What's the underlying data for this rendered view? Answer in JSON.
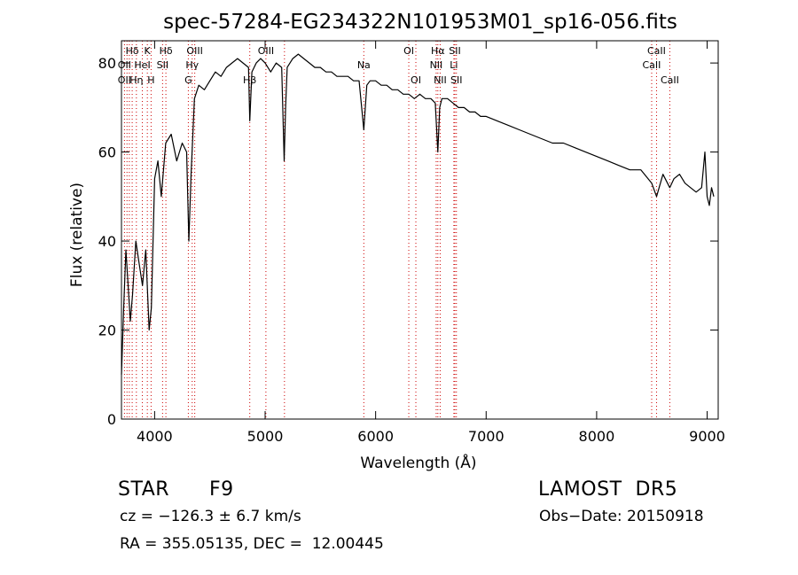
{
  "chart_data": {
    "type": "line",
    "title": "spec-57284-EG234322N101953M01_sp16-056.fits",
    "xlabel": "Wavelength (Å)",
    "ylabel": "Flux (relative)",
    "xlim": [
      3700,
      9100
    ],
    "ylim": [
      0,
      85
    ],
    "xticks": [
      4000,
      5000,
      6000,
      7000,
      8000,
      9000
    ],
    "yticks": [
      0,
      20,
      40,
      60,
      80
    ],
    "grid": false,
    "series": [
      {
        "x": [
          3700,
          3720,
          3740,
          3760,
          3780,
          3800,
          3830,
          3860,
          3890,
          3920,
          3950,
          3970,
          4000,
          4030,
          4060,
          4100,
          4150,
          4200,
          4250,
          4290,
          4310,
          4330,
          4360,
          4400,
          4450,
          4500,
          4550,
          4600,
          4650,
          4700,
          4750,
          4800,
          4850,
          4861,
          4880,
          4920,
          4960,
          5000,
          5050,
          5100,
          5150,
          5172,
          5185,
          5200,
          5250,
          5300,
          5350,
          5400,
          5450,
          5500,
          5550,
          5600,
          5650,
          5700,
          5750,
          5800,
          5850,
          5893,
          5920,
          5950,
          6000,
          6050,
          6100,
          6150,
          6200,
          6250,
          6300,
          6350,
          6400,
          6450,
          6500,
          6540,
          6563,
          6580,
          6600,
          6650,
          6700,
          6750,
          6800,
          6850,
          6900,
          6950,
          7000,
          7100,
          7200,
          7300,
          7400,
          7500,
          7600,
          7700,
          7800,
          7900,
          8000,
          8100,
          8200,
          8300,
          8400,
          8498,
          8542,
          8600,
          8662,
          8700,
          8750,
          8800,
          8850,
          8900,
          8950,
          8980,
          9000,
          9020,
          9040,
          9060
        ],
        "values": [
          10,
          25,
          38,
          30,
          22,
          28,
          40,
          35,
          30,
          38,
          20,
          25,
          54,
          58,
          50,
          62,
          64,
          58,
          62,
          60,
          40,
          55,
          72,
          75,
          74,
          76,
          78,
          77,
          79,
          80,
          81,
          80,
          79,
          67,
          78,
          80,
          81,
          80,
          78,
          80,
          79,
          58,
          70,
          79,
          81,
          82,
          81,
          80,
          79,
          79,
          78,
          78,
          77,
          77,
          77,
          76,
          76,
          65,
          75,
          76,
          76,
          75,
          75,
          74,
          74,
          73,
          73,
          72,
          73,
          72,
          72,
          71,
          60,
          70,
          72,
          72,
          71,
          70,
          70,
          69,
          69,
          68,
          68,
          67,
          66,
          65,
          64,
          63,
          62,
          62,
          61,
          60,
          59,
          58,
          57,
          56,
          56,
          53,
          50,
          55,
          52,
          54,
          55,
          53,
          52,
          51,
          52,
          60,
          50,
          48,
          52,
          50
        ]
      }
    ],
    "line_labels": [
      {
        "name": "Hδ",
        "wave": 3797,
        "row": 1
      },
      {
        "name": "OII",
        "wave": 3727,
        "row": 2
      },
      {
        "name": "OII",
        "wave": 3727,
        "row": 3
      },
      {
        "name": "Hη",
        "wave": 3835,
        "row": 3
      },
      {
        "name": "K",
        "wave": 3934,
        "row": 1
      },
      {
        "name": "HeI",
        "wave": 3889,
        "row": 2
      },
      {
        "name": "H",
        "wave": 3968,
        "row": 3
      },
      {
        "name": "Hδ",
        "wave": 4102,
        "row": 1
      },
      {
        "name": "SII",
        "wave": 4072,
        "row": 2
      },
      {
        "name": "OIII",
        "wave": 4363,
        "row": 1
      },
      {
        "name": "Hγ",
        "wave": 4340,
        "row": 2
      },
      {
        "name": "G",
        "wave": 4305,
        "row": 3
      },
      {
        "name": "OIII",
        "wave": 5007,
        "row": 1
      },
      {
        "name": "Hβ",
        "wave": 4861,
        "row": 3
      },
      {
        "name": "Na",
        "wave": 5893,
        "row": 2
      },
      {
        "name": "OI",
        "wave": 6300,
        "row": 1
      },
      {
        "name": "OI",
        "wave": 6364,
        "row": 3
      },
      {
        "name": "Hα",
        "wave": 6563,
        "row": 1
      },
      {
        "name": "SII",
        "wave": 6717,
        "row": 1
      },
      {
        "name": "NII",
        "wave": 6548,
        "row": 2
      },
      {
        "name": "Li",
        "wave": 6708,
        "row": 2
      },
      {
        "name": "NII",
        "wave": 6584,
        "row": 3
      },
      {
        "name": "SII",
        "wave": 6731,
        "row": 3
      },
      {
        "name": "CaII",
        "wave": 8542,
        "row": 1
      },
      {
        "name": "CaII",
        "wave": 8498,
        "row": 2
      },
      {
        "name": "CaII",
        "wave": 8662,
        "row": 3
      }
    ],
    "line_markers": [
      3727,
      3750,
      3771,
      3797,
      3835,
      3889,
      3934,
      3968,
      4072,
      4102,
      4305,
      4340,
      4363,
      4861,
      5007,
      5175,
      5893,
      6300,
      6364,
      6548,
      6563,
      6584,
      6708,
      6717,
      6731,
      8498,
      8542,
      8662
    ],
    "marker_color": "#cc0000"
  },
  "info": {
    "object_class": "STAR",
    "subclass": "F9",
    "survey": "LAMOST  DR5",
    "cz": "cz = −126.3 ± 6.7 km/s",
    "obs_date": "Obs−Date: 20150918",
    "coords": "RA = 355.05135, DEC =  12.00445"
  }
}
